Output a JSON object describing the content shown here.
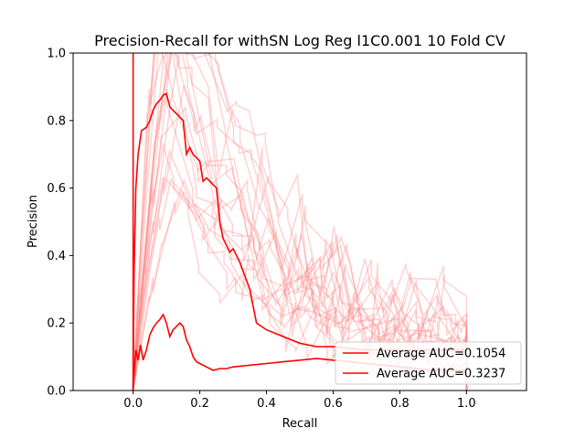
{
  "chart_data": {
    "type": "line",
    "title": "Precision-Recall for withSN Log Reg l1C0.001 10 Fold CV",
    "xlabel": "Recall",
    "ylabel": "Precision",
    "xlim": [
      -0.18,
      1.18
    ],
    "ylim": [
      0.0,
      1.0
    ],
    "xticks": [
      "0.0",
      "0.2",
      "0.4",
      "0.6",
      "0.8",
      "1.0"
    ],
    "yticks": [
      "0.0",
      "0.2",
      "0.4",
      "0.6",
      "0.8",
      "1.0"
    ],
    "grid": false,
    "legend_position": "lower-right",
    "series": [
      {
        "name": "Average AUC=0.1054",
        "color": "#ff0000",
        "x": [
          0.0,
          0.003,
          0.008,
          0.015,
          0.022,
          0.03,
          0.04,
          0.05,
          0.06,
          0.07,
          0.08,
          0.09,
          0.1,
          0.11,
          0.12,
          0.13,
          0.14,
          0.15,
          0.16,
          0.17,
          0.18,
          0.19,
          0.2,
          0.22,
          0.24,
          0.26,
          0.28,
          0.3,
          0.35,
          0.4,
          0.45,
          0.5,
          0.55,
          0.6,
          0.65,
          0.7,
          0.75,
          0.8,
          0.9,
          1.0
        ],
        "y": [
          0.0,
          0.05,
          0.12,
          0.09,
          0.135,
          0.09,
          0.12,
          0.165,
          0.185,
          0.2,
          0.21,
          0.225,
          0.2,
          0.16,
          0.18,
          0.19,
          0.2,
          0.19,
          0.15,
          0.13,
          0.1,
          0.085,
          0.08,
          0.07,
          0.06,
          0.065,
          0.065,
          0.07,
          0.075,
          0.08,
          0.085,
          0.09,
          0.095,
          0.09,
          0.085,
          0.08,
          0.075,
          0.07,
          0.06,
          0.06
        ]
      },
      {
        "name": "Average AUC=0.3237",
        "color": "#ff0000",
        "x": [
          0.0,
          0.003,
          0.008,
          0.015,
          0.025,
          0.04,
          0.05,
          0.06,
          0.07,
          0.08,
          0.09,
          0.1,
          0.11,
          0.12,
          0.13,
          0.14,
          0.15,
          0.16,
          0.17,
          0.18,
          0.19,
          0.2,
          0.21,
          0.22,
          0.23,
          0.24,
          0.25,
          0.26,
          0.27,
          0.28,
          0.29,
          0.3,
          0.32,
          0.35,
          0.37,
          0.4,
          0.45,
          0.5,
          0.55,
          0.6,
          0.65,
          0.7,
          0.75,
          0.8,
          0.9,
          1.0
        ],
        "y": [
          0.0,
          0.35,
          0.6,
          0.7,
          0.77,
          0.78,
          0.8,
          0.83,
          0.85,
          0.86,
          0.875,
          0.88,
          0.84,
          0.83,
          0.82,
          0.81,
          0.8,
          0.7,
          0.72,
          0.7,
          0.69,
          0.68,
          0.62,
          0.63,
          0.62,
          0.61,
          0.6,
          0.5,
          0.45,
          0.43,
          0.41,
          0.42,
          0.38,
          0.3,
          0.2,
          0.18,
          0.16,
          0.14,
          0.13,
          0.13,
          0.125,
          0.12,
          0.12,
          0.12,
          0.12,
          0.12
        ]
      }
    ]
  }
}
